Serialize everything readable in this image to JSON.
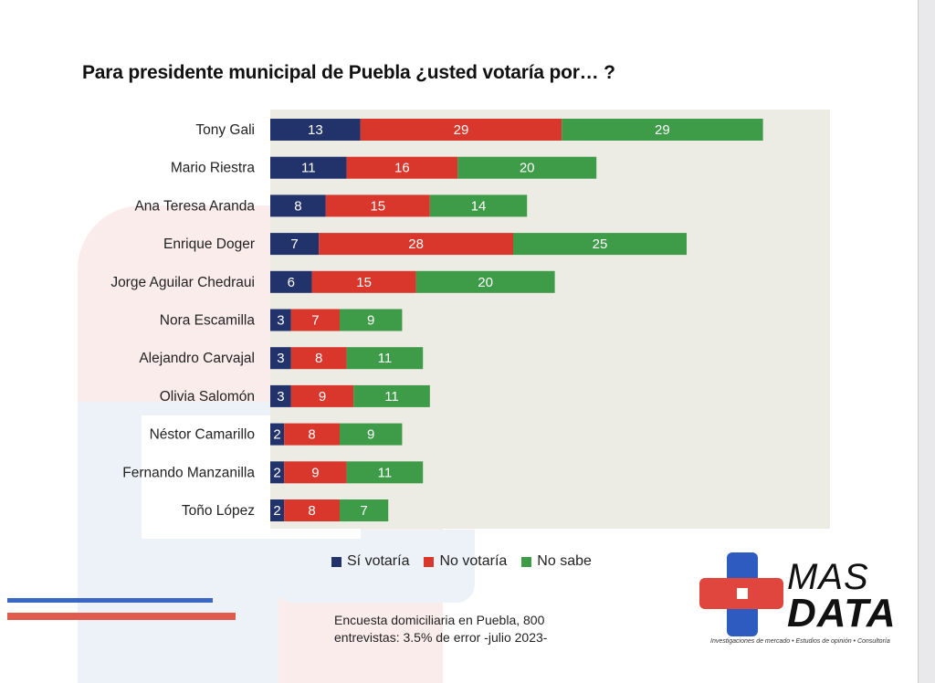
{
  "title": "Para presidente municipal de Puebla ¿usted votaría por… ?",
  "colors": {
    "si": "#22336b",
    "no": "#d9362c",
    "nosabe": "#3e9b48",
    "plot_bg": "#ecebe4"
  },
  "chart_data": {
    "type": "bar",
    "orientation": "horizontal",
    "stacked": true,
    "title": "Para presidente municipal de Puebla ¿usted votaría por… ?",
    "categories": [
      "Tony Gali",
      "Mario Riestra",
      "Ana Teresa Aranda",
      "Enrique Doger",
      "Jorge Aguilar Chedraui",
      "Nora Escamilla",
      "Alejandro Carvajal",
      "Olivia Salomón",
      "Néstor Camarillo",
      "Fernando Manzanilla",
      "Toño López"
    ],
    "series": [
      {
        "name": "Sí votaría",
        "color": "#22336b",
        "values": [
          13,
          11,
          8,
          7,
          6,
          3,
          3,
          3,
          2,
          2,
          2
        ]
      },
      {
        "name": "No votaría",
        "color": "#d9362c",
        "values": [
          29,
          16,
          15,
          28,
          15,
          7,
          8,
          9,
          8,
          9,
          8
        ]
      },
      {
        "name": "No sabe",
        "color": "#3e9b48",
        "values": [
          29,
          20,
          14,
          25,
          20,
          9,
          11,
          11,
          9,
          11,
          7
        ]
      }
    ],
    "xlim": [
      0,
      80
    ],
    "legend_position": "bottom",
    "grid": false
  },
  "legend": [
    {
      "label": "Sí votaría",
      "color": "#22336b"
    },
    {
      "label": "No votaría",
      "color": "#d9362c"
    },
    {
      "label": "No sabe",
      "color": "#3e9b48"
    }
  ],
  "source": {
    "line1": "Encuesta domiciliaria en Puebla, 800",
    "line2": "entrevistas: 3.5% de error -julio 2023-"
  },
  "logo": {
    "word1": "MAS",
    "word2": "DATA",
    "tagline": "Investigaciones de mercado • Estudios de opinión • Consultoría",
    "colors": {
      "red": "#e0463d",
      "blue": "#2e5bbf"
    }
  }
}
